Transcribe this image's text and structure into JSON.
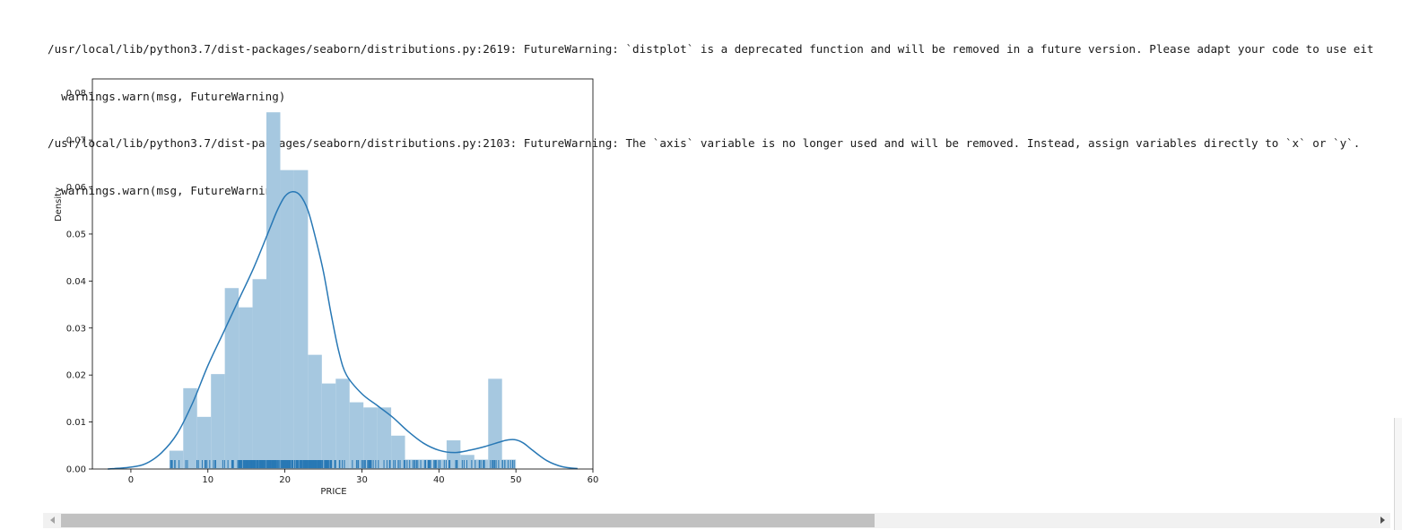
{
  "output": {
    "warnings": [
      "/usr/local/lib/python3.7/dist-packages/seaborn/distributions.py:2619: FutureWarning: `distplot` is a deprecated function and will be removed in a future version. Please adapt your code to use eit",
      "  warnings.warn(msg, FutureWarning)",
      "/usr/local/lib/python3.7/dist-packages/seaborn/distributions.py:2103: FutureWarning: The `axis` variable is no longer used and will be removed. Instead, assign variables directly to `x` or `y`.",
      "  warnings.warn(msg, FutureWarning)"
    ]
  },
  "colors": {
    "hist_fill": "#a6c8e0",
    "kde_line": "#2878b5",
    "rug": "#2878b5",
    "axis": "#000000"
  },
  "chart_data": {
    "type": "bar",
    "title": "",
    "xlabel": "PRICE",
    "ylabel": "Density",
    "xlim": [
      -5,
      60
    ],
    "ylim": [
      0,
      0.083
    ],
    "xticks": [
      0,
      10,
      20,
      30,
      40,
      50,
      60
    ],
    "yticks": [
      0.0,
      0.01,
      0.02,
      0.03,
      0.04,
      0.05,
      0.06,
      0.07,
      0.08
    ],
    "ytick_labels": [
      "0.00",
      "0.01",
      "0.02",
      "0.03",
      "0.04",
      "0.05",
      "0.06",
      "0.07",
      "0.08"
    ],
    "grid": false,
    "histogram": {
      "bin_edges": [
        5.0,
        6.8,
        8.6,
        10.4,
        12.2,
        14.0,
        15.8,
        17.6,
        19.4,
        21.2,
        23.0,
        24.8,
        26.6,
        28.4,
        30.2,
        32.0,
        33.8,
        35.6,
        37.4,
        39.2,
        41.0,
        42.8,
        44.6,
        46.4,
        48.2,
        50.0
      ],
      "density": [
        0.0039,
        0.0172,
        0.0111,
        0.0202,
        0.0385,
        0.0344,
        0.0404,
        0.0759,
        0.0636,
        0.0636,
        0.0243,
        0.0182,
        0.0192,
        0.0142,
        0.0131,
        0.0131,
        0.0071,
        0.002,
        0.002,
        0.002,
        0.0061,
        0.003,
        0.002,
        0.0192,
        0.002
      ]
    },
    "kde": {
      "x": [
        -3,
        0,
        2,
        4,
        6,
        8,
        10,
        12,
        14,
        16,
        18,
        19,
        20,
        21,
        22,
        23,
        24,
        25,
        26,
        27,
        28,
        30,
        32,
        34,
        36,
        38,
        40,
        42,
        44,
        46,
        48,
        49,
        50,
        51,
        52,
        54,
        56,
        58
      ],
      "y": [
        0.0,
        0.0004,
        0.0012,
        0.0035,
        0.0075,
        0.014,
        0.022,
        0.029,
        0.036,
        0.043,
        0.051,
        0.055,
        0.058,
        0.059,
        0.0582,
        0.055,
        0.049,
        0.042,
        0.033,
        0.025,
        0.02,
        0.016,
        0.0135,
        0.011,
        0.008,
        0.0055,
        0.004,
        0.0035,
        0.004,
        0.0048,
        0.0058,
        0.0062,
        0.0062,
        0.0055,
        0.0042,
        0.0018,
        0.0005,
        0.0001
      ]
    },
    "rug_range": [
      5,
      50
    ]
  }
}
